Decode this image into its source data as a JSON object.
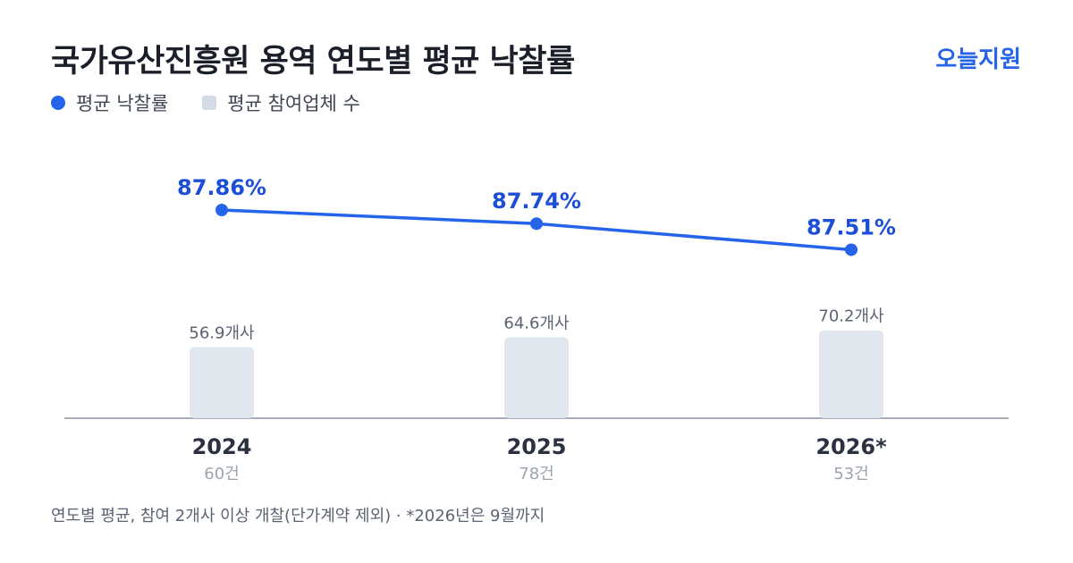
{
  "title": "국가유산진흥원 용역 연도별 평균 낙찰률",
  "brand": "오늘지원",
  "legend": {
    "rate_label": "평균 낙찰률",
    "bidders_label": "평균 참여업체 수"
  },
  "footnote": "연도별 평균, 참여 2개사 이상 개찰(단가계약 제외) · *2026년은 9월까지",
  "colors": {
    "line": "#2563eb",
    "rate_label": "#1d4ed8",
    "bar": "#e1e7ef",
    "axis": "#8a94a3",
    "bar_label": "#5b6373",
    "year_label": "#2b3140",
    "count_label": "#9aa3b0"
  },
  "chart_data": {
    "type": "line+bar",
    "categories": [
      "2024",
      "2025",
      "2026*"
    ],
    "counts": [
      "60건",
      "78건",
      "53건"
    ],
    "series": [
      {
        "name": "평균 낙찰률",
        "type": "line",
        "values": [
          87.86,
          87.74,
          87.51
        ],
        "labels": [
          "87.86%",
          "87.74%",
          "87.51%"
        ]
      },
      {
        "name": "평균 참여업체 수",
        "type": "bar",
        "values": [
          56.9,
          64.6,
          70.2
        ],
        "labels": [
          "56.9개사",
          "64.6개사",
          "70.2개사"
        ]
      }
    ],
    "legend_position": "top-left",
    "grid": false
  }
}
